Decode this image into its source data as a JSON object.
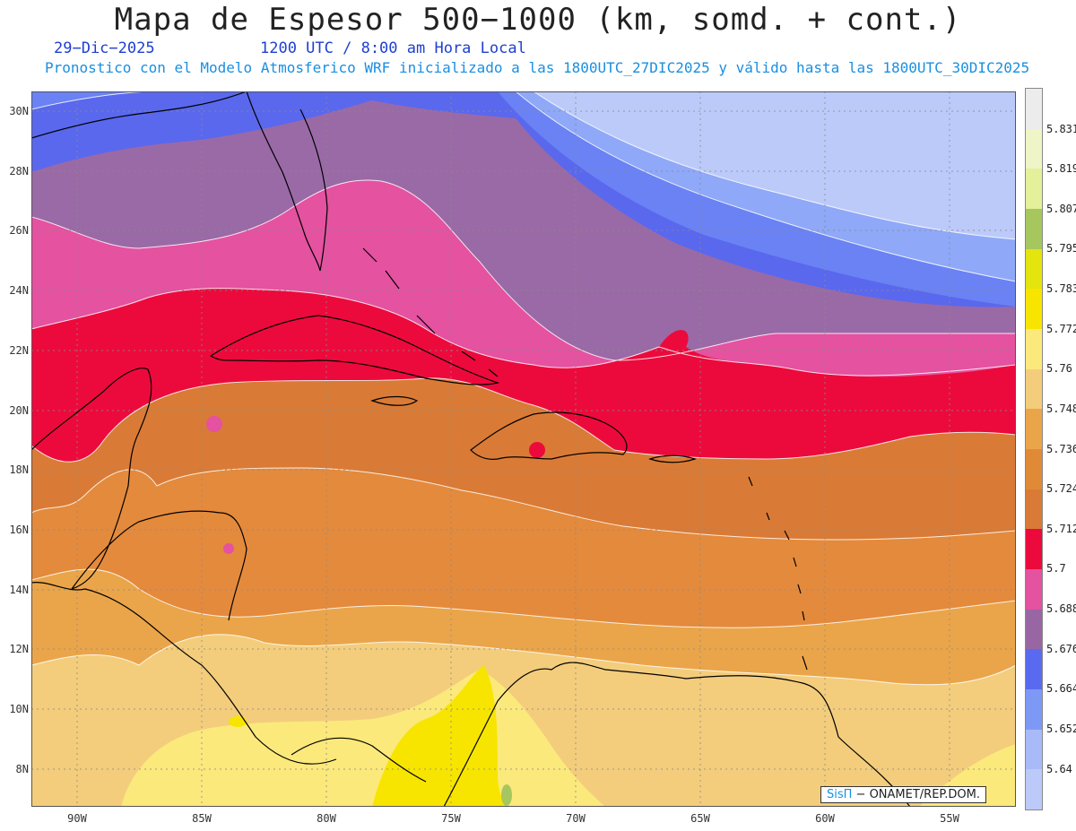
{
  "title": "Mapa de Espesor 500−1000 (km, somd. + cont.)",
  "date": "29−Dic−2025",
  "utc_line": "1200 UTC / 8:00 am Hora Local",
  "description": "Pronostico con el Modelo Atmosferico WRF inicializado a las 1800UTC_27DIC2025 y válido hasta las  1800UTC_30DIC2025",
  "lat_labels": [
    "30N",
    "28N",
    "26N",
    "24N",
    "22N",
    "20N",
    "18N",
    "16N",
    "14N",
    "12N",
    "10N",
    "8N"
  ],
  "lon_labels": [
    "90W",
    "85W",
    "80W",
    "75W",
    "70W",
    "65W",
    "60W",
    "55W"
  ],
  "colorbar": {
    "labels": [
      "5.831",
      "5.819",
      "5.807",
      "5.795",
      "5.783",
      "5.772",
      "5.76",
      "5.748",
      "5.736",
      "5.724",
      "5.712",
      "5.7",
      "5.688",
      "5.676",
      "5.664",
      "5.652",
      "5.64"
    ],
    "colors": [
      "#ececec",
      "#f0f5c8",
      "#e4f09a",
      "#a6c65e",
      "#e4e40e",
      "#f7e500",
      "#fbe97c",
      "#f3cd7c",
      "#eaa54a",
      "#e08a38",
      "#d97b36",
      "#ec0a3c",
      "#e452a0",
      "#9966a4",
      "#5a6af0",
      "#7e98f6",
      "#a8baf8",
      "#bccafa"
    ]
  },
  "credit": {
    "sis": "SisΠ",
    "text": " − ONAMET/REP.DOM."
  }
}
